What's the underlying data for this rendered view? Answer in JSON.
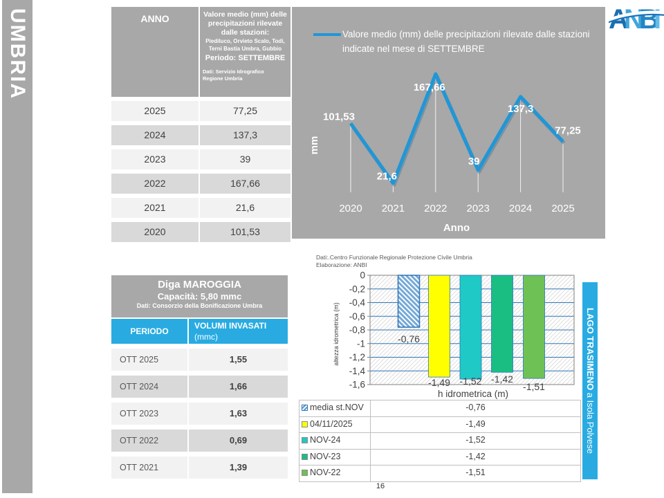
{
  "page": {
    "region": "UMBRIA",
    "number": "16"
  },
  "logo": {
    "text": "ANBI"
  },
  "precip_table": {
    "header_col1": "ANNO",
    "header_col2_title": "Valore medio (mm) delle precipitazioni rilevate dalle stazioni:",
    "header_col2_stations": "Piediluco, Orvieto Scalo, Todi, Terni Bastia Umbra, Gubbio",
    "header_col2_period": "Periodo: SETTEMBRE",
    "header_col2_source_line1": "Dati: Servizio Idrografico",
    "header_col2_source_line2": "Regione Umbria",
    "rows": [
      {
        "anno": "2025",
        "valore": "77,25"
      },
      {
        "anno": "2024",
        "valore": "137,3"
      },
      {
        "anno": "2023",
        "valore": "39"
      },
      {
        "anno": "2022",
        "valore": "167,66"
      },
      {
        "anno": "2021",
        "valore": "21,6"
      },
      {
        "anno": "2020",
        "valore": "101,53"
      }
    ]
  },
  "dam_table": {
    "title": "Diga MAROGGIA",
    "subtitle": "Capacità: 5,80 mmc",
    "source": "Dati: Consorzio della Bonificazione Umbra",
    "header_col1": "PERIODO",
    "header_col2": "VOLUMI INVASATI",
    "header_col2_unit": "(mmc)",
    "rows": [
      {
        "periodo": "OTT 2025",
        "volume": "1,55"
      },
      {
        "periodo": "OTT 2024",
        "volume": "1,66"
      },
      {
        "periodo": "OTT 2023",
        "volume": "1,63"
      },
      {
        "periodo": "OTT 2022",
        "volume": "0,69"
      },
      {
        "periodo": "OTT 2021",
        "volume": "1,39"
      }
    ]
  },
  "lake_banner": {
    "bold": "LAGO TRASIMENO",
    "regular": " a Isola Polvese"
  },
  "chart_data": [
    {
      "type": "line",
      "legend": "Valore medio (mm) delle precipitazioni rilevate dalle stazioni indicate nel mese di SETTEMBRE",
      "x": [
        "2020",
        "2021",
        "2022",
        "2023",
        "2024",
        "2025"
      ],
      "values": [
        101.53,
        21.6,
        167.66,
        39,
        137.3,
        77.25
      ],
      "labels": [
        "101,53",
        "21,6",
        "167,66",
        "39",
        "137,3",
        "77,25"
      ],
      "xlabel": "Anno",
      "ylabel": "mm",
      "line_color": "#2196D6",
      "ylim": [
        0,
        180
      ],
      "background": "#A8A8A8"
    },
    {
      "type": "bar",
      "categories": [
        "media st.NOV",
        "04/11/2025",
        "NOV-24",
        "NOV-23",
        "NOV-22"
      ],
      "values": [
        -0.76,
        -1.49,
        -1.52,
        -1.42,
        -1.51
      ],
      "labels": [
        "-0,76",
        "-1,49",
        "-1,52",
        "-1,42",
        "-1,51"
      ],
      "yticks": [
        "0",
        "-0,2",
        "-0,4",
        "-0,6",
        "-0,8",
        "-1",
        "-1,2",
        "-1,4",
        "-1,6"
      ],
      "ylim": [
        -1.6,
        0
      ],
      "colors": [
        "hatch",
        "#FFFF00",
        "#1FC9C5",
        "#1ABE82",
        "#6EC155"
      ],
      "gridline_color": "#2E75B6",
      "xlabel": "h idrometrica (m)",
      "ylabel": "altezza idrometrica (m)",
      "source_line1": "Dati:.Centro Funzionale Regionale Protezione Civile Umbria",
      "source_line2": "Elaborazione: ANBI",
      "legend_rows": [
        {
          "label": "media st.NOV",
          "value": "-0,76",
          "swatch": "hatch"
        },
        {
          "label": "04/11/2025",
          "value": "-1,49",
          "swatch": "#FFFF00"
        },
        {
          "label": "NOV-24",
          "value": "-1,52",
          "swatch": "#1FC9C5"
        },
        {
          "label": "NOV-23",
          "value": "-1,42",
          "swatch": "#1ABE82"
        },
        {
          "label": "NOV-22",
          "value": "-1,51",
          "swatch": "#6EC155"
        }
      ]
    }
  ]
}
